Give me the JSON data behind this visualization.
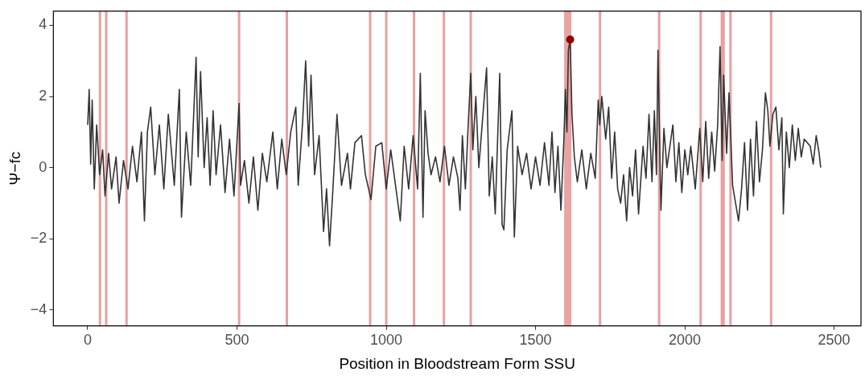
{
  "chart_data": {
    "type": "line",
    "xlabel": "Position in Bloodstream Form SSU",
    "ylabel": "Ψ−fc",
    "xlim": [
      -115,
      2590
    ],
    "ylim": [
      -4.45,
      4.4
    ],
    "xticks": [
      0,
      500,
      1000,
      1500,
      2000,
      2500
    ],
    "yticks": [
      {
        "value": -4,
        "label": "−4"
      },
      {
        "value": -2,
        "label": "−2"
      },
      0,
      2,
      4
    ],
    "grid": false,
    "legend": false,
    "series": [
      {
        "color": "#333333",
        "x": [
          0,
          5,
          10,
          15,
          22,
          30,
          40,
          50,
          58,
          70,
          80,
          95,
          105,
          120,
          135,
          150,
          165,
          180,
          190,
          200,
          211,
          225,
          240,
          255,
          270,
          290,
          307,
          314,
          330,
          345,
          355,
          363,
          370,
          378,
          390,
          400,
          410,
          420,
          430,
          445,
          460,
          475,
          490,
          507,
          512,
          525,
          540,
          555,
          570,
          585,
          600,
          620,
          635,
          650,
          665,
          680,
          697,
          705,
          720,
          730,
          740,
          748,
          760,
          775,
          790,
          800,
          810,
          820,
          835,
          850,
          870,
          880,
          895,
          917,
          930,
          949,
          965,
          985,
          1000,
          1015,
          1047,
          1060,
          1075,
          1090,
          1105,
          1114,
          1123,
          1130,
          1140,
          1150,
          1165,
          1180,
          1195,
          1210,
          1225,
          1240,
          1247,
          1255,
          1265,
          1275,
          1283,
          1290,
          1300,
          1310,
          1336,
          1345,
          1355,
          1365,
          1380,
          1388,
          1394,
          1405,
          1421,
          1429,
          1440,
          1455,
          1470,
          1485,
          1500,
          1515,
          1530,
          1545,
          1555,
          1565,
          1575,
          1585,
          1595,
          1600,
          1605,
          1610,
          1616,
          1622,
          1630,
          1640,
          1655,
          1670,
          1685,
          1700,
          1710,
          1715,
          1722,
          1735,
          1745,
          1755,
          1765,
          1775,
          1785,
          1795,
          1805,
          1815,
          1825,
          1835,
          1845,
          1860,
          1870,
          1880,
          1890,
          1898,
          1905,
          1910,
          1920,
          1930,
          1940,
          1950,
          1960,
          1970,
          1980,
          1990,
          2000,
          2010,
          2020,
          2035,
          2050,
          2060,
          2070,
          2080,
          2090,
          2100,
          2110,
          2118,
          2125,
          2130,
          2140,
          2148,
          2160,
          2170,
          2180,
          2190,
          2200,
          2210,
          2220,
          2230,
          2240,
          2250,
          2260,
          2270,
          2278,
          2285,
          2295,
          2305,
          2315,
          2325,
          2330,
          2340,
          2350,
          2360,
          2370,
          2380,
          2390,
          2400,
          2410,
          2420,
          2430,
          2440,
          2450,
          2455
        ],
        "values": [
          1.2,
          2.2,
          0.1,
          1.9,
          -0.6,
          1.2,
          -0.2,
          0.5,
          -0.8,
          0.4,
          -0.6,
          0.3,
          -1.0,
          0.2,
          -0.6,
          0.6,
          -0.4,
          1.0,
          -1.5,
          1.0,
          1.7,
          -0.2,
          1.2,
          -0.6,
          1.5,
          -0.5,
          2.2,
          -1.4,
          1.0,
          -0.5,
          1.5,
          3.1,
          0.3,
          2.7,
          0.0,
          1.4,
          -0.5,
          1.6,
          -0.2,
          1.2,
          -0.7,
          0.8,
          -0.8,
          1.8,
          -0.5,
          0.2,
          -1.0,
          0.3,
          -1.2,
          0.4,
          -0.4,
          1.0,
          -0.6,
          0.8,
          -0.2,
          1.0,
          1.7,
          -0.5,
          1.3,
          3.0,
          0.6,
          2.6,
          -0.2,
          0.9,
          -1.8,
          -0.6,
          -2.2,
          -0.8,
          1.5,
          -0.5,
          0.4,
          -0.6,
          0.7,
          0.9,
          -0.2,
          -0.9,
          0.6,
          0.7,
          -0.6,
          0.5,
          -1.5,
          0.6,
          -0.6,
          0.9,
          -0.6,
          2.65,
          -1.4,
          1.6,
          0.4,
          -0.2,
          0.3,
          -0.4,
          0.6,
          -0.5,
          0.3,
          -0.3,
          -1.2,
          0.9,
          -0.6,
          1.3,
          2.65,
          0.5,
          2.0,
          0.0,
          2.8,
          -0.8,
          0.3,
          -1.3,
          2.65,
          -1.6,
          -1.75,
          0.5,
          1.6,
          -1.95,
          0.6,
          -0.2,
          0.4,
          -0.6,
          0.3,
          -0.5,
          0.7,
          -0.5,
          1.0,
          -0.7,
          0.6,
          -1.2,
          0.8,
          2.2,
          1.0,
          3.3,
          3.6,
          1.5,
          0.3,
          -0.4,
          0.5,
          -0.6,
          0.4,
          -0.3,
          1.9,
          1.2,
          2.0,
          0.8,
          1.7,
          -0.3,
          1.0,
          -0.6,
          -1.0,
          -0.2,
          -1.5,
          0.0,
          -0.8,
          0.5,
          -1.3,
          0.6,
          -0.3,
          1.5,
          -0.4,
          1.6,
          -0.2,
          3.3,
          -1.2,
          1.1,
          0.0,
          0.6,
          1.2,
          -0.4,
          0.7,
          -0.7,
          0.5,
          -0.2,
          0.6,
          -0.6,
          1.1,
          -0.4,
          1.3,
          -0.3,
          1.0,
          -0.1,
          1.2,
          3.4,
          0.2,
          2.6,
          0.4,
          2.1,
          -0.5,
          -1.0,
          -1.5,
          -0.6,
          0.7,
          -1.2,
          0.8,
          -0.8,
          1.3,
          -0.4,
          0.5,
          2.1,
          1.6,
          0.6,
          1.5,
          1.7,
          0.5,
          1.4,
          -1.3,
          1.0,
          0.0,
          1.2,
          0.2,
          1.1,
          0.3,
          0.8,
          0.7,
          0.6,
          0.1,
          0.9,
          0.4,
          0.0
        ]
      },
      {
        "type": "scatter",
        "color": "#8b0000",
        "x": [
          1616
        ],
        "values": [
          3.6
        ]
      }
    ],
    "ref_lines": [
      {
        "axis": "x",
        "value": 41,
        "color": "#e8a0a0"
      },
      {
        "axis": "x",
        "value": 62,
        "color": "#e8a0a0"
      },
      {
        "axis": "x",
        "value": 130,
        "color": "#e8a0a0"
      },
      {
        "axis": "x",
        "value": 507,
        "color": "#e8a0a0"
      },
      {
        "axis": "x",
        "value": 667,
        "color": "#e8a0a0"
      },
      {
        "axis": "x",
        "value": 946,
        "color": "#e8a0a0"
      },
      {
        "axis": "x",
        "value": 1000,
        "color": "#e8a0a0"
      },
      {
        "axis": "x",
        "value": 1093,
        "color": "#e8a0a0"
      },
      {
        "axis": "x",
        "value": 1193,
        "color": "#e8a0a0"
      },
      {
        "axis": "x",
        "value": 1283,
        "color": "#e8a0a0"
      },
      {
        "axis": "x",
        "value": 1600,
        "color": "#e8a0a0"
      },
      {
        "axis": "x",
        "value": 1608,
        "color": "#e8a0a0"
      },
      {
        "axis": "x",
        "value": 1616,
        "color": "#e8a0a0"
      },
      {
        "axis": "x",
        "value": 1716,
        "color": "#e8a0a0"
      },
      {
        "axis": "x",
        "value": 1914,
        "color": "#e8a0a0"
      },
      {
        "axis": "x",
        "value": 2053,
        "color": "#e8a0a0"
      },
      {
        "axis": "x",
        "value": 2124,
        "color": "#e8a0a0"
      },
      {
        "axis": "x",
        "value": 2130,
        "color": "#e8a0a0"
      },
      {
        "axis": "x",
        "value": 2153,
        "color": "#e8a0a0"
      },
      {
        "axis": "x",
        "value": 2289,
        "color": "#e8a0a0"
      }
    ]
  }
}
